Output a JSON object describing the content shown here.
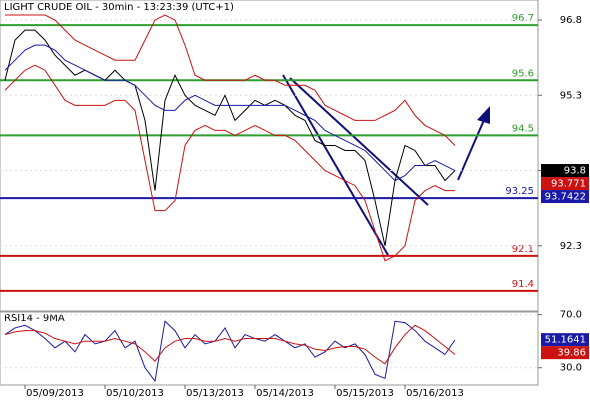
{
  "chart_data": [
    {
      "type": "line",
      "title": "LIGHT CRUDE OIL - 30min - 13:23:39 (UTC+1)",
      "categories": [
        null,
        null,
        null,
        null,
        null,
        "05/09/2013",
        null,
        null,
        null,
        null,
        null,
        null,
        null,
        "05/10/2013",
        null,
        null,
        null,
        null,
        null,
        null,
        null,
        "05/13/2013",
        null,
        null,
        null,
        null,
        null,
        null,
        "05/14/2013",
        null,
        null,
        null,
        null,
        null,
        null,
        null,
        "05/15/2013",
        null,
        null,
        null,
        null,
        null,
        null,
        "05/16/2013",
        null,
        null
      ],
      "series": [
        {
          "color": "#000000",
          "values": [
            95.6,
            96.4,
            96.6,
            96.6,
            96.4,
            96.1,
            95.9,
            95.7,
            95.8,
            95.7,
            95.6,
            95.8,
            95.6,
            95.5,
            94.8,
            93.4,
            95.2,
            95.7,
            95.3,
            95.1,
            95.0,
            94.9,
            95.3,
            94.8,
            95.0,
            95.2,
            95.1,
            95.2,
            95.1,
            94.9,
            94.8,
            94.4,
            94.3,
            94.3,
            94.2,
            94.2,
            94.0,
            93.2,
            92.3,
            93.6,
            94.3,
            94.2,
            93.9,
            93.9,
            93.6,
            93.8
          ]
        },
        {
          "color": "#cc1111",
          "values": [
            96.9,
            96.9,
            96.9,
            96.9,
            96.9,
            96.8,
            96.6,
            96.4,
            96.3,
            96.2,
            96.1,
            96.0,
            96.0,
            96.0,
            96.4,
            96.8,
            96.9,
            96.8,
            96.3,
            95.7,
            95.6,
            95.6,
            95.6,
            95.6,
            95.6,
            95.7,
            95.6,
            95.6,
            95.5,
            95.5,
            95.5,
            95.4,
            95.1,
            95.0,
            94.9,
            94.8,
            94.8,
            94.8,
            94.9,
            95.0,
            95.2,
            94.9,
            94.7,
            94.6,
            94.5,
            94.3
          ]
        },
        {
          "color": "#cc1111",
          "values": [
            95.4,
            95.6,
            95.8,
            95.9,
            95.8,
            95.5,
            95.2,
            95.1,
            95.1,
            95.1,
            95.1,
            95.2,
            95.2,
            95.0,
            94.0,
            93.0,
            93.0,
            93.2,
            94.3,
            94.6,
            94.7,
            94.6,
            94.6,
            94.5,
            94.6,
            94.7,
            94.6,
            94.5,
            94.5,
            94.4,
            94.2,
            94.0,
            93.8,
            93.7,
            93.6,
            93.5,
            93.2,
            92.6,
            92.0,
            92.1,
            92.3,
            93.2,
            93.4,
            93.5,
            93.4,
            93.4
          ]
        },
        {
          "color": "#1a1aa6",
          "values": [
            95.8,
            96.0,
            96.2,
            96.3,
            96.3,
            96.2,
            96.0,
            95.9,
            95.8,
            95.7,
            95.6,
            95.6,
            95.6,
            95.5,
            95.3,
            95.1,
            95.0,
            95.0,
            95.2,
            95.3,
            95.2,
            95.1,
            95.1,
            95.1,
            95.1,
            95.1,
            95.1,
            95.1,
            95.1,
            95.0,
            94.9,
            94.8,
            94.6,
            94.5,
            94.4,
            94.3,
            94.2,
            94.0,
            93.8,
            93.6,
            93.7,
            93.9,
            93.9,
            94.0,
            93.9,
            93.8
          ]
        }
      ],
      "ylim": [
        91.0,
        97.2
      ],
      "yticks": [
        96.8,
        95.3,
        93.8,
        92.3
      ],
      "levels": [
        {
          "value": 96.7,
          "color": "#2e9e2e"
        },
        {
          "value": 95.6,
          "color": "#2e9e2e"
        },
        {
          "value": 94.5,
          "color": "#2e9e2e"
        },
        {
          "value": 93.25,
          "color": "#1a1aa6"
        },
        {
          "value": 92.1,
          "color": "#cc1111"
        },
        {
          "value": 91.4,
          "color": "#cc1111"
        }
      ],
      "price_tags": [
        {
          "value": 93.8,
          "color": "#000000"
        },
        {
          "value": 93.771,
          "color": "#cc1111"
        },
        {
          "value": 93.7422,
          "color": "#1a1aa6"
        }
      ]
    },
    {
      "type": "line",
      "title": "RSI14 - 9MA",
      "series": [
        {
          "color": "#1a1aa6",
          "values": [
            55,
            60,
            62,
            58,
            52,
            45,
            50,
            42,
            55,
            48,
            50,
            58,
            45,
            50,
            30,
            20,
            65,
            58,
            45,
            55,
            48,
            50,
            60,
            45,
            55,
            52,
            50,
            55,
            50,
            45,
            48,
            38,
            42,
            50,
            45,
            48,
            40,
            25,
            22,
            65,
            64,
            58,
            50,
            45,
            40,
            51
          ]
        },
        {
          "color": "#cc1111",
          "values": [
            55,
            57,
            58,
            58,
            56,
            52,
            50,
            48,
            50,
            50,
            50,
            52,
            50,
            48,
            42,
            35,
            45,
            50,
            52,
            52,
            50,
            50,
            52,
            50,
            52,
            52,
            52,
            52,
            50,
            48,
            47,
            44,
            43,
            45,
            46,
            46,
            44,
            38,
            33,
            45,
            55,
            62,
            58,
            52,
            46,
            40
          ]
        }
      ],
      "ylim": [
        17,
        72
      ],
      "yticks": [
        {
          "value": 70,
          "label": "70.0"
        },
        {
          "value": 30,
          "label": "30.0"
        }
      ],
      "price_tags": [
        {
          "value": 51.1641,
          "color": "#1a1aa6"
        },
        {
          "value": 39.86,
          "color": "#cc1111"
        }
      ]
    }
  ]
}
